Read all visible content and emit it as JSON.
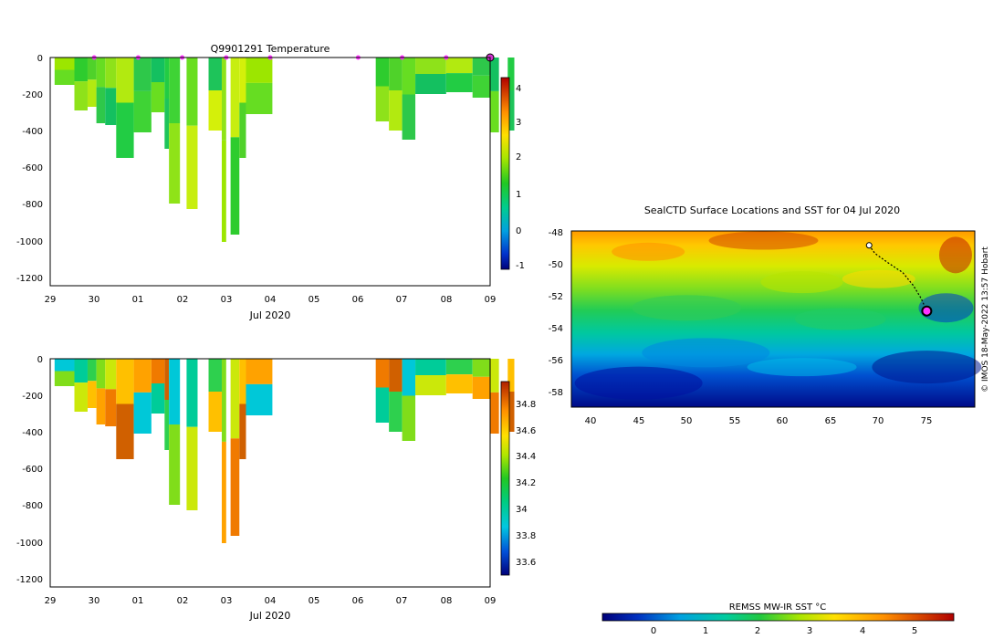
{
  "chart_data": [
    {
      "id": "temp",
      "type": "heatmap",
      "title": "Q9901291  Temperature",
      "xlabel": "Jul 2020",
      "x_ticks": [
        "29",
        "30",
        "01",
        "02",
        "03",
        "04",
        "05",
        "06",
        "07",
        "08",
        "09"
      ],
      "y_ticks": [
        "0",
        "-200",
        "-400",
        "-600",
        "-800",
        "-1000",
        "-1200"
      ],
      "ylim": [
        -1250,
        0
      ],
      "colorbar": {
        "ticks": [
          "4",
          "3",
          "2",
          "1",
          "0",
          "-1"
        ],
        "range": [
          -1.2,
          4.4
        ]
      },
      "surface_markers_day": [
        1,
        2,
        3,
        4,
        5,
        7,
        8,
        9
      ],
      "end_marker_day": 10,
      "bottom_depths": [
        150,
        290,
        270,
        360,
        370,
        550,
        410,
        300,
        500,
        800,
        830,
        400,
        1010,
        970,
        550,
        310,
        350,
        400,
        450,
        200,
        190,
        220,
        410,
        400
      ],
      "profile_colors": [
        "#9ce600",
        "#2ecc2e",
        "#4fd22a",
        "#66dd22",
        "#8ee21a",
        "#b2ea10",
        "#2ec84a",
        "#14c060",
        "#22cc44",
        "#3fd335",
        "#69de20",
        "#1ec45a",
        "#8fe318",
        "#c7ee10",
        "#d4f00a"
      ]
    },
    {
      "id": "psal",
      "type": "heatmap",
      "title": "",
      "xlabel": "Jul 2020",
      "x_ticks": [
        "29",
        "30",
        "01",
        "02",
        "03",
        "04",
        "05",
        "06",
        "07",
        "08",
        "09"
      ],
      "y_ticks": [
        "0",
        "-200",
        "-400",
        "-600",
        "-800",
        "-1000",
        "-1200"
      ],
      "ylim": [
        -1250,
        0
      ],
      "colorbar": {
        "ticks": [
          "34.8",
          "34.6",
          "34.4",
          "34.2",
          "34",
          "33.8",
          "33.6"
        ],
        "range": [
          33.5,
          34.95
        ]
      },
      "bottom_depths": [
        150,
        290,
        270,
        360,
        370,
        550,
        410,
        300,
        500,
        800,
        830,
        400,
        1010,
        970,
        550,
        310,
        350,
        400,
        450,
        200,
        190,
        220,
        410,
        400
      ],
      "profile_colors": [
        "#00c8d8",
        "#00cc99",
        "#2ed04e",
        "#80dd1a",
        "#cbe80a",
        "#ffc000",
        "#ffa200",
        "#f07a00",
        "#d06000"
      ]
    },
    {
      "id": "map",
      "type": "heatmap",
      "title": "SealCTD Surface Locations and SST for 04 Jul 2020",
      "x_ticks": [
        "40",
        "45",
        "50",
        "55",
        "60",
        "65",
        "70",
        "75"
      ],
      "y_ticks": [
        "-48",
        "-50",
        "-52",
        "-54",
        "-56",
        "-58"
      ],
      "xlim": [
        38,
        80
      ],
      "ylim": [
        -59,
        -48
      ],
      "track_start": {
        "lon": 69,
        "lat": -48.9
      },
      "current_location": {
        "lon": 75,
        "lat": -53.0
      },
      "watermark": "© IMOS 18-May-2022 13:57 Hobart",
      "colorbar": {
        "label": "REMSS MW-IR SST °C",
        "ticks": [
          "0",
          "1",
          "2",
          "3",
          "4",
          "5"
        ],
        "range": [
          -1,
          5.8
        ]
      }
    }
  ]
}
